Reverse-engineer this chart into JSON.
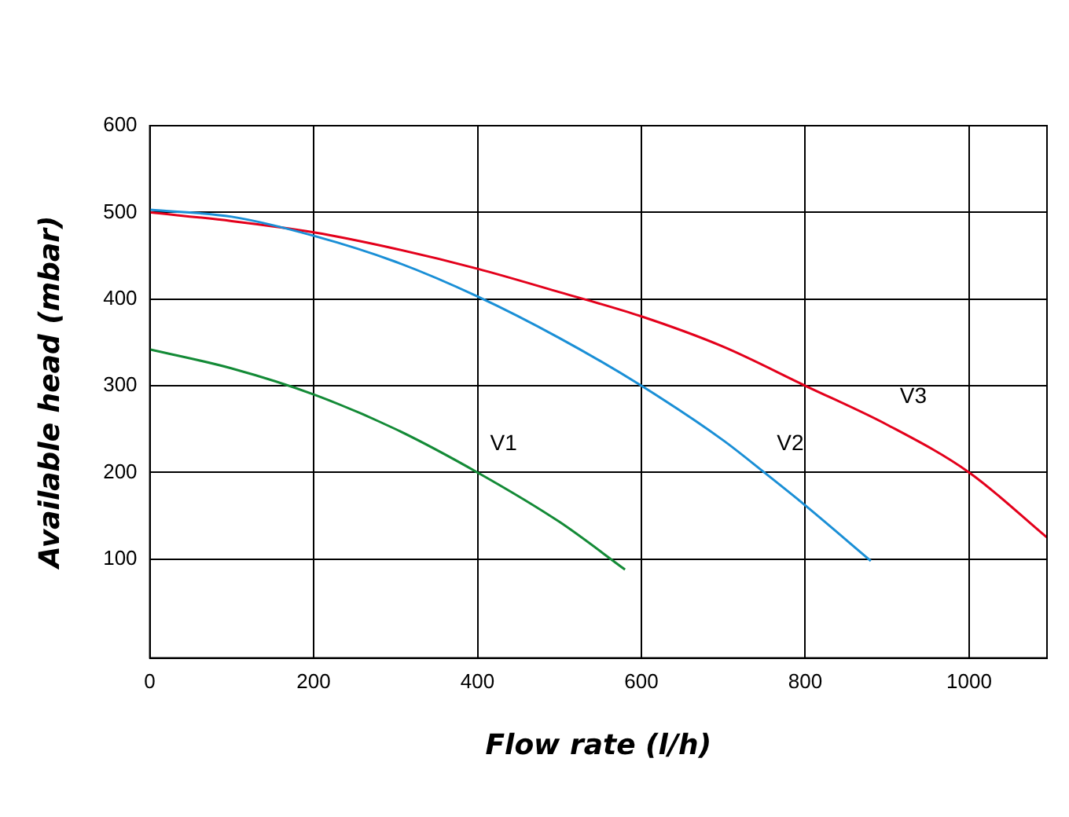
{
  "chart_data": {
    "type": "line",
    "xlabel": "Flow rate (l/h)",
    "ylabel": "Available head (mbar)",
    "xlim": [
      0,
      1095
    ],
    "xticks": [
      0,
      200,
      400,
      600,
      800,
      1000
    ],
    "ylim": [
      -14,
      600
    ],
    "yticks": [
      100,
      200,
      300,
      400,
      500,
      600
    ],
    "grid": true,
    "legend": false,
    "marker": "none",
    "line_style": "solid",
    "series": [
      {
        "name": "V1",
        "color": "#138a36",
        "x": [
          0,
          100,
          200,
          300,
          400,
          500,
          580
        ],
        "values": [
          342,
          320,
          290,
          250,
          200,
          143,
          88
        ]
      },
      {
        "name": "V2",
        "color": "#1a8fd6",
        "x": [
          0,
          100,
          200,
          300,
          400,
          500,
          600,
          700,
          750,
          800,
          880
        ],
        "values": [
          503,
          495,
          473,
          443,
          403,
          355,
          300,
          237,
          200,
          162,
          98
        ]
      },
      {
        "name": "V3",
        "color": "#e3001b",
        "x": [
          0,
          100,
          200,
          300,
          400,
          500,
          600,
          700,
          800,
          900,
          1000,
          1095
        ],
        "values": [
          500,
          490,
          477,
          458,
          435,
          408,
          380,
          345,
          300,
          255,
          200,
          125
        ]
      }
    ]
  }
}
